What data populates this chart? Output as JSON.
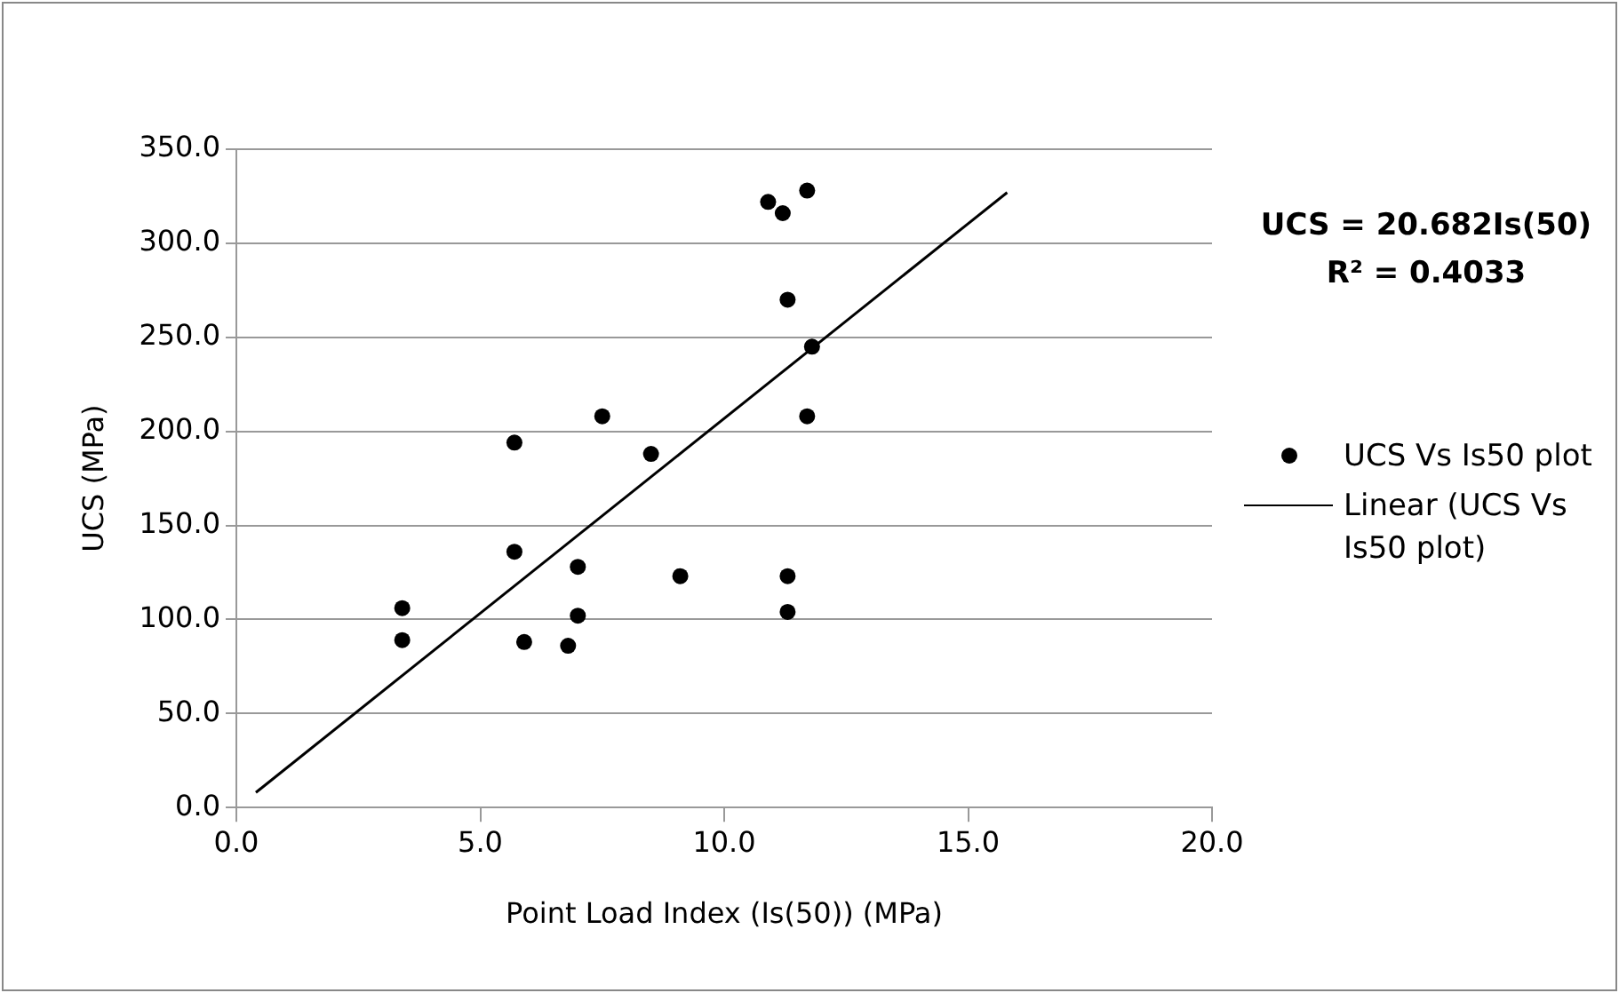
{
  "chart_data": {
    "type": "scatter",
    "xlabel": "Point Load Index (Is(50)) (MPa)",
    "ylabel": "UCS (MPa)",
    "annotations": [
      "UCS = 20.682Is(50)\nR² = 0.4033"
    ],
    "series": [
      {
        "name": "UCS Vs Is50 plot",
        "color": "#000000",
        "marker": "circle",
        "x": [
          3.4,
          3.4,
          5.7,
          5.7,
          5.9,
          6.8,
          7.0,
          7.0,
          7.5,
          8.5,
          9.1,
          10.9,
          11.2,
          11.3,
          11.3,
          11.3,
          11.7,
          11.7,
          11.8
        ],
        "values": [
          106,
          89,
          194,
          136,
          88,
          86,
          128,
          102,
          208,
          188,
          123,
          322,
          316,
          270,
          123,
          104,
          328,
          208,
          245
        ]
      },
      {
        "name": "Linear (UCS Vs Is50 plot)",
        "type": "line",
        "color": "#000000",
        "marker": "none",
        "line_style": "solid",
        "x": [
          0.4,
          15.8
        ],
        "values": [
          8,
          327
        ]
      }
    ],
    "xlim": [
      0,
      20
    ],
    "xticks": [
      {
        "value": 0,
        "label": "0.0"
      },
      {
        "value": 5,
        "label": "5.0"
      },
      {
        "value": 10,
        "label": "10.0"
      },
      {
        "value": 15,
        "label": "15.0"
      },
      {
        "value": 20,
        "label": "20.0"
      }
    ],
    "ylim": [
      0,
      350
    ],
    "yticks": [
      {
        "value": 0,
        "label": "0.0"
      },
      {
        "value": 50,
        "label": "50.0"
      },
      {
        "value": 100,
        "label": "100.0"
      },
      {
        "value": 150,
        "label": "150.0"
      },
      {
        "value": 200,
        "label": "200.0"
      },
      {
        "value": 250,
        "label": "250.0"
      },
      {
        "value": 300,
        "label": "300.0"
      },
      {
        "value": 350,
        "label": "350.0"
      }
    ],
    "grid": "y",
    "legend": "right"
  }
}
